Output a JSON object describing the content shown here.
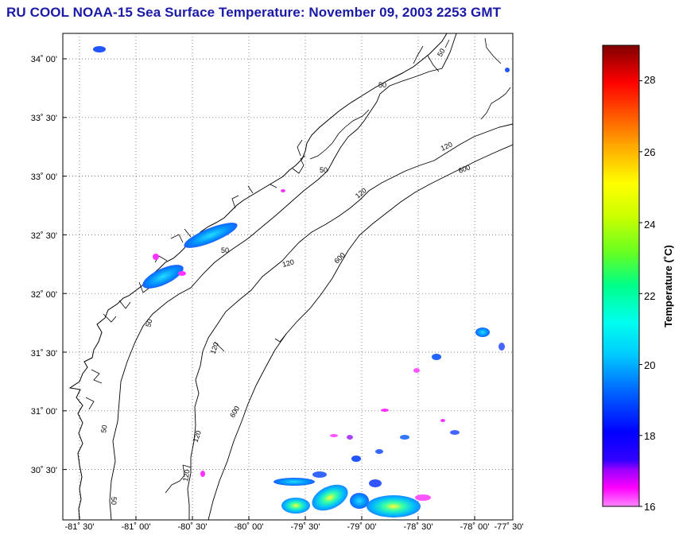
{
  "title": "RU COOL  NOAA-15  Sea Surface Temperature:  November 09, 2003 2253 GMT",
  "map": {
    "lat_ticks": [
      "34˚ 00'",
      "33˚ 30'",
      "33˚ 00'",
      "32˚ 30'",
      "32˚ 00'",
      "31˚ 30'",
      "31˚ 00'",
      "30˚ 30'"
    ],
    "lon_ticks": [
      "-81˚ 30'",
      "-81˚ 00'",
      "-80˚ 30'",
      "-80˚ 00'",
      "-79˚ 30'",
      "-79˚ 00'",
      "-78˚ 30'",
      "-78˚ 00'",
      "-77˚ 30'"
    ],
    "isobath_labels": [
      "50",
      "50",
      "50",
      "50",
      "50",
      "50",
      "50",
      "120",
      "120",
      "120",
      "120",
      "120",
      "120",
      "600",
      "600",
      "600"
    ],
    "grid": true,
    "gridline_style": "dotted",
    "land_color": "#ffffff",
    "coastline_color": "#000000"
  },
  "colorbar": {
    "label": "Temperature (˚C)",
    "ticks": [
      "28",
      "26",
      "24",
      "22",
      "20",
      "18",
      "16"
    ],
    "min": 16,
    "max": 29,
    "colors": [
      "#ff00ff",
      "#8800ff",
      "#0000ff",
      "#00aaff",
      "#00ffff",
      "#00ff88",
      "#88ff00",
      "#ffff00",
      "#ffaa00",
      "#ff4400",
      "#ff0000",
      "#aa0000",
      "#7a0000"
    ]
  }
}
